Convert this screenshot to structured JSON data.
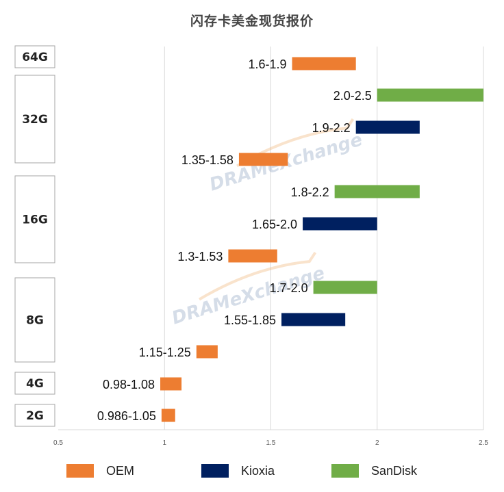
{
  "chart_data": {
    "type": "bar",
    "orientation": "horizontal-floating-range",
    "title": "闪存卡美金现货报价",
    "watermark": "DRAMeXchange",
    "xlim": [
      0.5,
      2.5
    ],
    "x_ticks": [
      "0.5",
      "1",
      "1.5",
      "2",
      "2.5"
    ],
    "x_tick_values": [
      0.5,
      1,
      1.5,
      2,
      2.5
    ],
    "grid": true,
    "legend_position": "bottom",
    "colors": {
      "OEM": "#ED7D31",
      "Kioxia": "#002060",
      "SanDisk": "#70AD47"
    },
    "groups": [
      {
        "capacity": "64G",
        "bars": [
          {
            "series": "OEM",
            "low": 1.6,
            "high": 1.9,
            "label": "1.6-1.9"
          }
        ]
      },
      {
        "capacity": "32G",
        "bars": [
          {
            "series": "SanDisk",
            "low": 2.0,
            "high": 2.5,
            "label": "2.0-2.5"
          },
          {
            "series": "Kioxia",
            "low": 1.9,
            "high": 2.2,
            "label": "1.9-2.2"
          },
          {
            "series": "OEM",
            "low": 1.35,
            "high": 1.58,
            "label": "1.35-1.58"
          }
        ]
      },
      {
        "capacity": "16G",
        "bars": [
          {
            "series": "SanDisk",
            "low": 1.8,
            "high": 2.2,
            "label": "1.8-2.2"
          },
          {
            "series": "Kioxia",
            "low": 1.65,
            "high": 2.0,
            "label": "1.65-2.0"
          },
          {
            "series": "OEM",
            "low": 1.3,
            "high": 1.53,
            "label": "1.3-1.53"
          }
        ]
      },
      {
        "capacity": "8G",
        "bars": [
          {
            "series": "SanDisk",
            "low": 1.7,
            "high": 2.0,
            "label": "1.7-2.0"
          },
          {
            "series": "Kioxia",
            "low": 1.55,
            "high": 1.85,
            "label": "1.55-1.85"
          },
          {
            "series": "OEM",
            "low": 1.15,
            "high": 1.25,
            "label": "1.15-1.25"
          }
        ]
      },
      {
        "capacity": "4G",
        "bars": [
          {
            "series": "OEM",
            "low": 0.98,
            "high": 1.08,
            "label": "0.98-1.08"
          }
        ]
      },
      {
        "capacity": "2G",
        "bars": [
          {
            "series": "OEM",
            "low": 0.986,
            "high": 1.05,
            "label": "0.986-1.05"
          }
        ]
      }
    ],
    "legend": [
      "OEM",
      "Kioxia",
      "SanDisk"
    ]
  }
}
